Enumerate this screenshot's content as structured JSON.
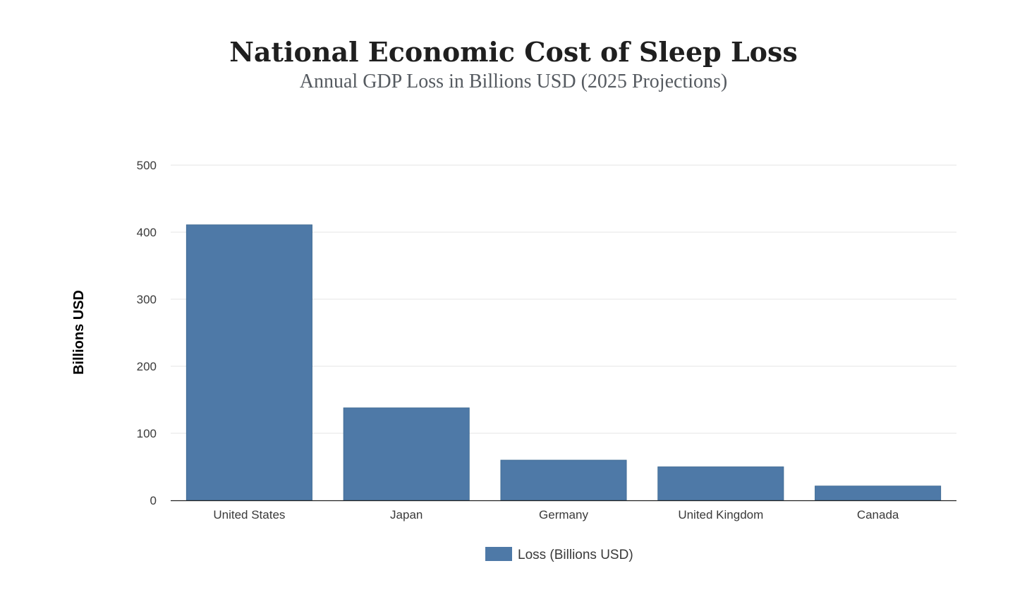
{
  "chart_data": {
    "type": "bar",
    "title": "National Economic Cost of Sleep Loss",
    "subtitle": "Annual GDP Loss in Billions USD (2025 Projections)",
    "xlabel": "",
    "ylabel": "Billions USD",
    "categories": [
      "United States",
      "Japan",
      "Germany",
      "United Kingdom",
      "Canada"
    ],
    "series": [
      {
        "name": "Loss (Billions USD)",
        "values": [
          411,
          138,
          60,
          50,
          21.4
        ],
        "color": "#4e79a7"
      }
    ],
    "ylim": [
      0,
      500
    ],
    "yticks": [
      0,
      100,
      200,
      300,
      400,
      500
    ],
    "ytick_labels": [
      "0",
      "100",
      "200",
      "300",
      "400",
      "500"
    ],
    "grid": true,
    "legend_position": "bottom-center"
  },
  "colors": {
    "bar": "#4e79a7",
    "gridline": "#e6e6e6",
    "axis": "#222222"
  }
}
